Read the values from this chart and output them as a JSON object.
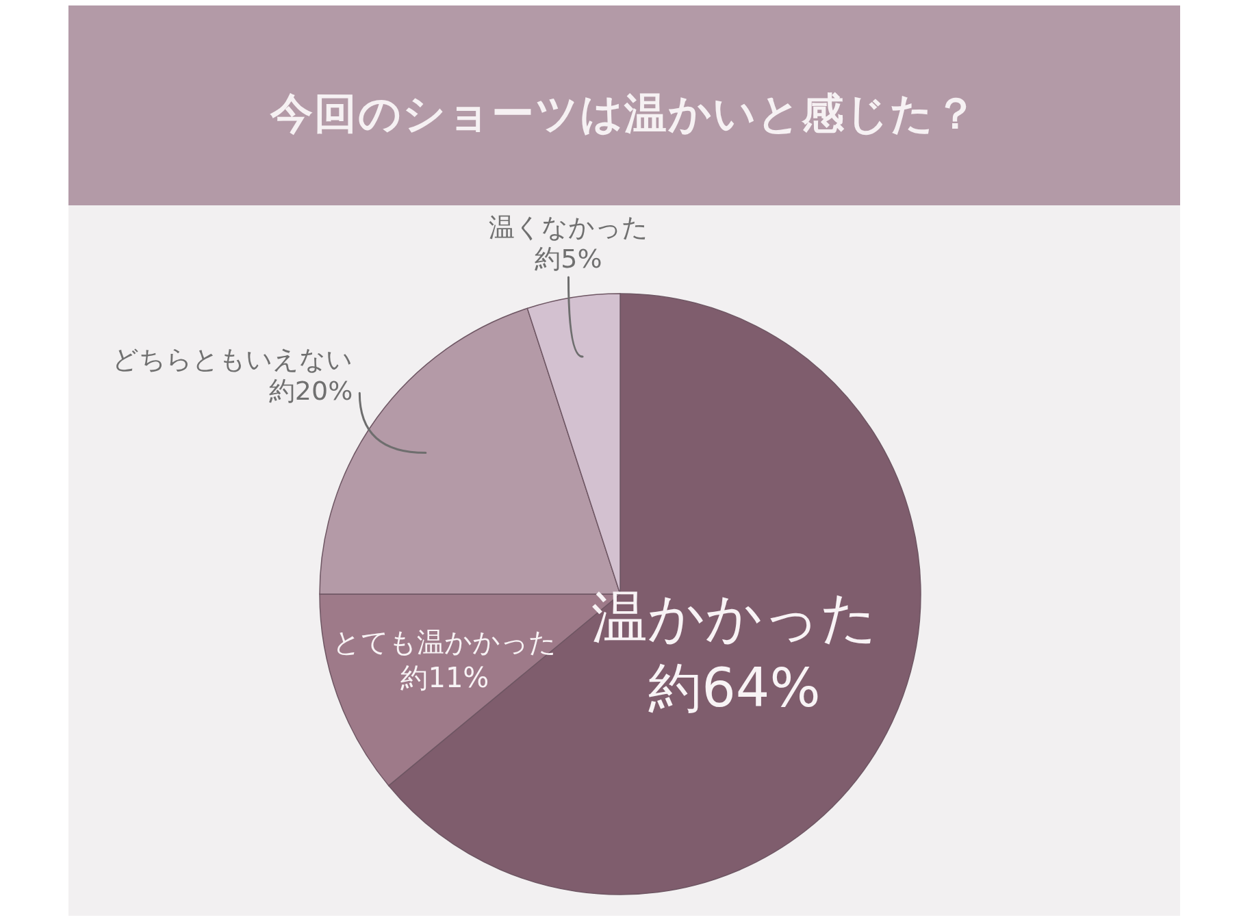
{
  "chart_data": {
    "type": "pie",
    "title": "今回のショーツは温かいと感じた？",
    "categories": [
      "温かかった",
      "とても温かかった",
      "どちらともいえない",
      "温くなかった"
    ],
    "values": [
      64,
      11,
      20,
      5
    ],
    "value_labels": [
      "約64%",
      "約11%",
      "約20%",
      "約5%"
    ],
    "colors": [
      "#7f5d6d",
      "#9e7a89",
      "#b49aa7",
      "#d3c1d0"
    ]
  }
}
